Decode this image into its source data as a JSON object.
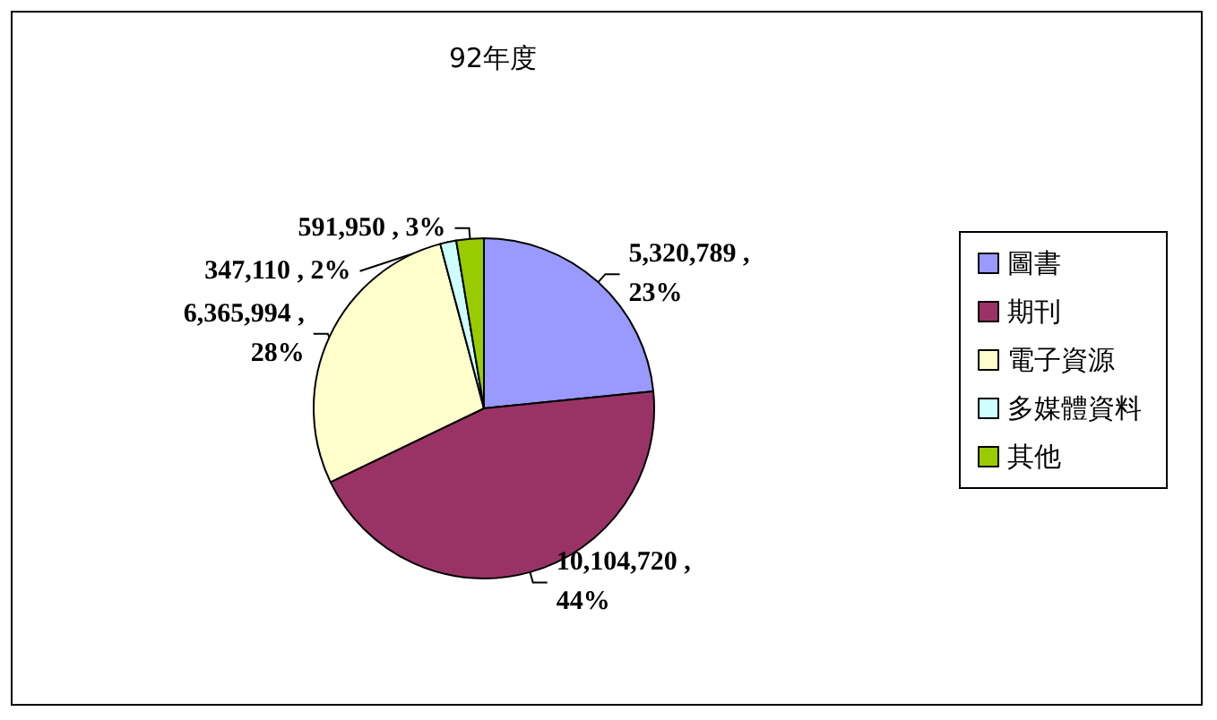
{
  "chart_data": {
    "type": "pie",
    "title": "92年度",
    "categories": [
      "圖書",
      "期刊",
      "電子資源",
      "多媒體資料",
      "其他"
    ],
    "values": [
      5320789,
      10104720,
      6365994,
      347110,
      591950
    ],
    "colors": [
      "#9999ff",
      "#993366",
      "#ffffcc",
      "#ccffff",
      "#99cc00"
    ],
    "value_labels": [
      "5,320,789 , 23%",
      "10,104,720 , 44%",
      "6,365,994 , 28%",
      "347,110 , 2%",
      "591,950 , 3%"
    ],
    "legend": "right"
  }
}
